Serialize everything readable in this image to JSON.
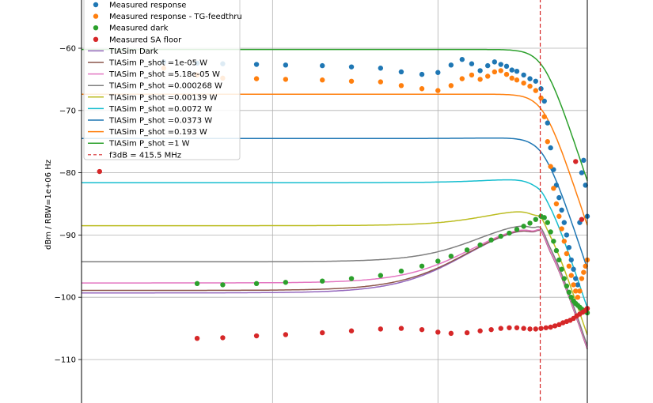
{
  "chart_data": {
    "type": "scatter",
    "ylabel": "dBm / RBW=1e+06 Hz",
    "xscale": "log",
    "xlim": [
      0.7,
      800
    ],
    "ylim": [
      -118,
      -52
    ],
    "yticks": [
      -60,
      -70,
      -80,
      -90,
      -100,
      -110
    ],
    "ytick_labels": [
      "−60",
      "−70",
      "−80",
      "−90",
      "−100",
      "−110"
    ],
    "grid": true,
    "legend_position": "upper-left",
    "colors": {
      "blue": "#1f77b4",
      "orange": "#ff7f0e",
      "green": "#2ca02c",
      "red": "#d62728",
      "purple": "#9467bd",
      "brown": "#8c564b",
      "pink": "#e377c2",
      "gray": "#7f7f7f",
      "olive": "#bcbd22",
      "cyan": "#17becf"
    },
    "scatter_series": [
      {
        "name": "Measured response",
        "color": "#1f77b4",
        "points": [
          [
            2.2,
            -62.2
          ],
          [
            3.5,
            -62.4
          ],
          [
            5,
            -62.5
          ],
          [
            8,
            -62.6
          ],
          [
            12,
            -62.7
          ],
          [
            20,
            -62.8
          ],
          [
            30,
            -63
          ],
          [
            45,
            -63.2
          ],
          [
            60,
            -63.8
          ],
          [
            80,
            -64.2
          ],
          [
            100,
            -63.9
          ],
          [
            120,
            -62.7
          ],
          [
            140,
            -61.8
          ],
          [
            160,
            -62.5
          ],
          [
            180,
            -63.6
          ],
          [
            200,
            -62.8
          ],
          [
            220,
            -62.2
          ],
          [
            240,
            -62.6
          ],
          [
            260,
            -62.9
          ],
          [
            280,
            -63.5
          ],
          [
            300,
            -63.7
          ],
          [
            330,
            -64.3
          ],
          [
            360,
            -64.9
          ],
          [
            390,
            -65.3
          ],
          [
            420,
            -66.5
          ],
          [
            440,
            -68.5
          ],
          [
            460,
            -72
          ],
          [
            480,
            -76
          ],
          [
            500,
            -79.5
          ],
          [
            520,
            -82
          ],
          [
            540,
            -84
          ],
          [
            560,
            -86
          ],
          [
            580,
            -88
          ],
          [
            600,
            -90
          ],
          [
            620,
            -92
          ],
          [
            640,
            -94
          ],
          [
            660,
            -95.5
          ],
          [
            680,
            -97
          ],
          [
            700,
            -98
          ],
          [
            720,
            -88
          ],
          [
            740,
            -80
          ],
          [
            760,
            -78
          ],
          [
            780,
            -82
          ],
          [
            800,
            -87
          ]
        ]
      },
      {
        "name": "Measured response - TG-feedthru",
        "color": "#ff7f0e",
        "points": [
          [
            2.2,
            -63.2
          ],
          [
            3.5,
            -64.3
          ],
          [
            5,
            -64.8
          ],
          [
            8,
            -64.9
          ],
          [
            12,
            -65
          ],
          [
            20,
            -65.1
          ],
          [
            30,
            -65.3
          ],
          [
            45,
            -65.4
          ],
          [
            60,
            -66
          ],
          [
            80,
            -66.5
          ],
          [
            100,
            -66.8
          ],
          [
            120,
            -66
          ],
          [
            140,
            -64.9
          ],
          [
            160,
            -64.3
          ],
          [
            180,
            -65
          ],
          [
            200,
            -64.5
          ],
          [
            220,
            -63.8
          ],
          [
            240,
            -63.6
          ],
          [
            260,
            -64.2
          ],
          [
            280,
            -64.8
          ],
          [
            300,
            -65.1
          ],
          [
            330,
            -65.6
          ],
          [
            360,
            -66.1
          ],
          [
            390,
            -66.8
          ],
          [
            420,
            -68
          ],
          [
            440,
            -71
          ],
          [
            460,
            -75
          ],
          [
            480,
            -79
          ],
          [
            500,
            -82.5
          ],
          [
            520,
            -85
          ],
          [
            540,
            -87
          ],
          [
            560,
            -89
          ],
          [
            580,
            -91
          ],
          [
            600,
            -93
          ],
          [
            620,
            -95
          ],
          [
            640,
            -96.5
          ],
          [
            660,
            -98
          ],
          [
            680,
            -99
          ],
          [
            700,
            -100
          ],
          [
            720,
            -99
          ],
          [
            740,
            -97
          ],
          [
            760,
            -96
          ],
          [
            780,
            -95
          ],
          [
            800,
            -94
          ]
        ]
      },
      {
        "name": "Measured dark",
        "color": "#2ca02c",
        "points": [
          [
            3.5,
            -97.8
          ],
          [
            5,
            -98
          ],
          [
            8,
            -97.8
          ],
          [
            12,
            -97.6
          ],
          [
            20,
            -97.4
          ],
          [
            30,
            -97
          ],
          [
            45,
            -96.5
          ],
          [
            60,
            -95.8
          ],
          [
            80,
            -95
          ],
          [
            100,
            -94.2
          ],
          [
            120,
            -93.4
          ],
          [
            150,
            -92.4
          ],
          [
            180,
            -91.6
          ],
          [
            210,
            -90.8
          ],
          [
            240,
            -90.2
          ],
          [
            270,
            -89.7
          ],
          [
            300,
            -89.1
          ],
          [
            330,
            -88.6
          ],
          [
            360,
            -88.1
          ],
          [
            390,
            -87.5
          ],
          [
            420,
            -87
          ],
          [
            440,
            -87.2
          ],
          [
            460,
            -88
          ],
          [
            480,
            -89.5
          ],
          [
            500,
            -91
          ],
          [
            520,
            -92.5
          ],
          [
            540,
            -94
          ],
          [
            560,
            -95.5
          ],
          [
            580,
            -97
          ],
          [
            600,
            -98.2
          ],
          [
            620,
            -99.2
          ],
          [
            640,
            -100
          ],
          [
            660,
            -100.6
          ],
          [
            680,
            -101
          ],
          [
            700,
            -101.3
          ],
          [
            720,
            -101.6
          ],
          [
            740,
            -101.9
          ],
          [
            760,
            -102.1
          ],
          [
            780,
            -102.3
          ],
          [
            800,
            -102.5
          ]
        ]
      },
      {
        "name": "Measured SA floor",
        "color": "#d62728",
        "points": [
          [
            0.9,
            -79.8
          ],
          [
            3.5,
            -106.6
          ],
          [
            5,
            -106.5
          ],
          [
            8,
            -106.2
          ],
          [
            12,
            -106
          ],
          [
            20,
            -105.7
          ],
          [
            30,
            -105.4
          ],
          [
            45,
            -105.1
          ],
          [
            60,
            -105
          ],
          [
            80,
            -105.2
          ],
          [
            100,
            -105.6
          ],
          [
            120,
            -105.8
          ],
          [
            150,
            -105.7
          ],
          [
            180,
            -105.4
          ],
          [
            210,
            -105.2
          ],
          [
            240,
            -105
          ],
          [
            270,
            -104.9
          ],
          [
            300,
            -104.9
          ],
          [
            330,
            -105
          ],
          [
            360,
            -105.1
          ],
          [
            390,
            -105.1
          ],
          [
            420,
            -105
          ],
          [
            450,
            -104.9
          ],
          [
            480,
            -104.8
          ],
          [
            510,
            -104.6
          ],
          [
            540,
            -104.4
          ],
          [
            570,
            -104.1
          ],
          [
            600,
            -103.9
          ],
          [
            630,
            -103.7
          ],
          [
            660,
            -103.4
          ],
          [
            690,
            -103
          ],
          [
            720,
            -102.7
          ],
          [
            750,
            -102.4
          ],
          [
            780,
            -102.1
          ],
          [
            800,
            -101.8
          ],
          [
            680,
            -78.2
          ],
          [
            740,
            -87.5
          ]
        ]
      }
    ],
    "line_series": [
      {
        "name": "TIASim Dark",
        "color": "#9467bd",
        "low": -99.3
      },
      {
        "name": "TIASim P_shot =1e-05 W",
        "color": "#8c564b",
        "low": -98.9
      },
      {
        "name": "TIASim P_shot =5.18e-05 W",
        "color": "#e377c2",
        "low": -97.7
      },
      {
        "name": "TIASim P_shot =0.000268 W",
        "color": "#7f7f7f",
        "low": -94.3
      },
      {
        "name": "TIASim P_shot =0.00139 W",
        "color": "#bcbd22",
        "low": -88.5
      },
      {
        "name": "TIASim P_shot =0.0072 W",
        "color": "#17becf",
        "low": -81.6
      },
      {
        "name": "TIASim P_shot =0.0373 W",
        "color": "#1f77b4",
        "low": -74.5
      },
      {
        "name": "TIASim P_shot =0.193 W",
        "color": "#ff7f0e",
        "low": -67.4
      },
      {
        "name": "TIASim P_shot =1 W",
        "color": "#2ca02c",
        "low": -60.2
      }
    ],
    "vline": {
      "name": "f3dB = 415.5 MHz",
      "x": 415.5,
      "color": "#d62728"
    }
  }
}
